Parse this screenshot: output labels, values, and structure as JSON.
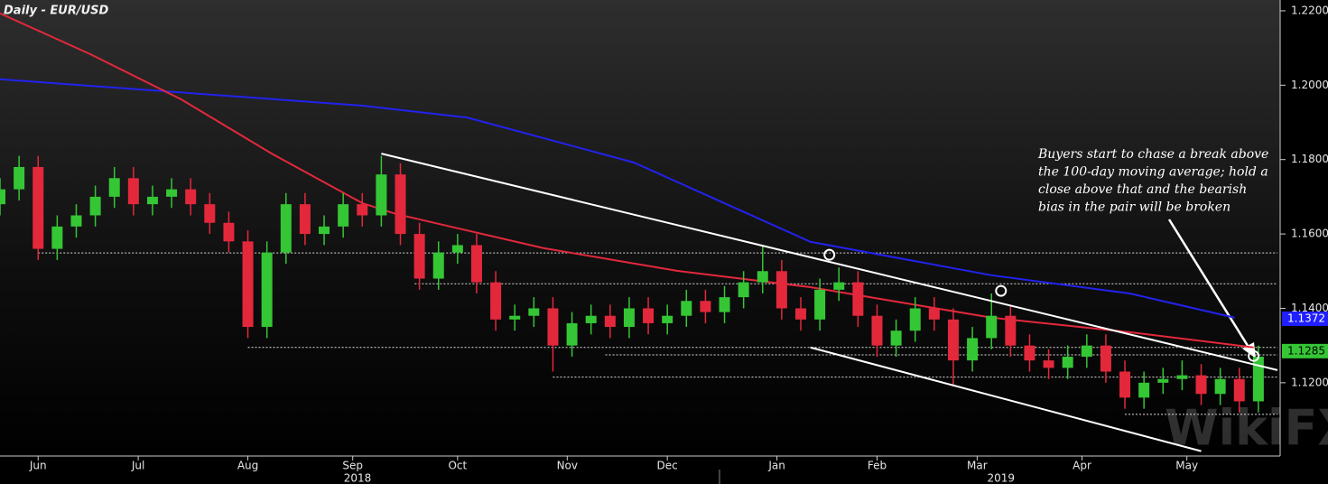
{
  "chart_data": {
    "type": "candlestick",
    "title": "Daily - EUR/USD",
    "watermark": "WikiFX",
    "xlim": [
      0,
      268
    ],
    "ylim": [
      1.1003,
      1.2229
    ],
    "yticks": [
      {
        "value": 1.12,
        "label": "1.1200"
      },
      {
        "value": 1.14,
        "label": "1.1400"
      },
      {
        "value": 1.16,
        "label": "1.1600"
      },
      {
        "value": 1.18,
        "label": "1.1800"
      },
      {
        "value": 1.2,
        "label": "1.2000"
      },
      {
        "value": 1.22,
        "label": "1.2200"
      }
    ],
    "xticks": [
      {
        "value": 8,
        "label": "Jun"
      },
      {
        "value": 29,
        "label": "Jul"
      },
      {
        "value": 52,
        "label": "Aug"
      },
      {
        "value": 74,
        "label": "Sep"
      },
      {
        "value": 96,
        "label": "Oct"
      },
      {
        "value": 119,
        "label": "Nov"
      },
      {
        "value": 140,
        "label": "Dec"
      },
      {
        "value": 163,
        "label": "Jan"
      },
      {
        "value": 184,
        "label": "Feb"
      },
      {
        "value": 205,
        "label": "Mar"
      },
      {
        "value": 227,
        "label": "Apr"
      },
      {
        "value": 249,
        "label": "May"
      }
    ],
    "year_labels": [
      {
        "value": 75,
        "label": "2018"
      },
      {
        "value": 210,
        "label": "2019"
      }
    ],
    "up_color": "#35c635",
    "down_color": "#e3283c",
    "x": [
      0,
      4,
      8,
      12,
      16,
      20,
      24,
      28,
      32,
      36,
      40,
      44,
      48,
      52,
      56,
      60,
      64,
      68,
      72,
      76,
      80,
      84,
      88,
      92,
      96,
      100,
      104,
      108,
      112,
      116,
      120,
      124,
      128,
      132,
      136,
      140,
      144,
      148,
      152,
      156,
      160,
      164,
      168,
      172,
      176,
      180,
      184,
      188,
      192,
      196,
      200,
      204,
      208,
      212,
      216,
      220,
      224,
      228,
      232,
      236,
      240,
      244,
      248,
      252,
      256,
      260,
      264
    ],
    "open": [
      1.168,
      1.172,
      1.178,
      1.156,
      1.162,
      1.165,
      1.17,
      1.175,
      1.168,
      1.17,
      1.172,
      1.168,
      1.163,
      1.158,
      1.135,
      1.155,
      1.168,
      1.16,
      1.162,
      1.168,
      1.165,
      1.176,
      1.16,
      1.148,
      1.155,
      1.157,
      1.147,
      1.137,
      1.138,
      1.14,
      1.13,
      1.136,
      1.138,
      1.135,
      1.14,
      1.136,
      1.138,
      1.142,
      1.139,
      1.143,
      1.147,
      1.15,
      1.14,
      1.137,
      1.145,
      1.147,
      1.138,
      1.13,
      1.134,
      1.14,
      1.137,
      1.126,
      1.132,
      1.138,
      1.13,
      1.126,
      1.124,
      1.127,
      1.13,
      1.123,
      1.116,
      1.12,
      1.121,
      1.122,
      1.117,
      1.121,
      1.115
    ],
    "high": [
      1.175,
      1.181,
      1.181,
      1.165,
      1.168,
      1.173,
      1.178,
      1.178,
      1.173,
      1.175,
      1.175,
      1.171,
      1.166,
      1.161,
      1.158,
      1.171,
      1.171,
      1.165,
      1.171,
      1.171,
      1.181,
      1.179,
      1.163,
      1.158,
      1.16,
      1.16,
      1.15,
      1.141,
      1.143,
      1.143,
      1.139,
      1.141,
      1.141,
      1.143,
      1.143,
      1.141,
      1.145,
      1.145,
      1.146,
      1.15,
      1.157,
      1.153,
      1.143,
      1.148,
      1.151,
      1.15,
      1.141,
      1.137,
      1.143,
      1.143,
      1.14,
      1.135,
      1.144,
      1.141,
      1.133,
      1.129,
      1.13,
      1.133,
      1.133,
      1.126,
      1.123,
      1.124,
      1.126,
      1.125,
      1.124,
      1.124,
      1.13
    ],
    "low": [
      1.165,
      1.169,
      1.153,
      1.153,
      1.159,
      1.162,
      1.167,
      1.165,
      1.165,
      1.167,
      1.165,
      1.16,
      1.155,
      1.132,
      1.132,
      1.152,
      1.157,
      1.157,
      1.159,
      1.162,
      1.162,
      1.157,
      1.145,
      1.145,
      1.152,
      1.144,
      1.134,
      1.134,
      1.135,
      1.123,
      1.127,
      1.133,
      1.132,
      1.132,
      1.133,
      1.133,
      1.135,
      1.136,
      1.136,
      1.14,
      1.144,
      1.137,
      1.134,
      1.134,
      1.142,
      1.135,
      1.127,
      1.127,
      1.131,
      1.134,
      1.119,
      1.123,
      1.129,
      1.127,
      1.123,
      1.121,
      1.121,
      1.124,
      1.12,
      1.113,
      1.113,
      1.117,
      1.118,
      1.114,
      1.114,
      1.112,
      1.112
    ],
    "close": [
      1.172,
      1.178,
      1.156,
      1.162,
      1.165,
      1.17,
      1.175,
      1.168,
      1.17,
      1.172,
      1.168,
      1.163,
      1.158,
      1.135,
      1.155,
      1.168,
      1.16,
      1.162,
      1.168,
      1.165,
      1.176,
      1.16,
      1.148,
      1.155,
      1.157,
      1.147,
      1.137,
      1.138,
      1.14,
      1.13,
      1.136,
      1.138,
      1.135,
      1.14,
      1.136,
      1.138,
      1.142,
      1.139,
      1.143,
      1.147,
      1.15,
      1.14,
      1.137,
      1.145,
      1.147,
      1.138,
      1.13,
      1.134,
      1.14,
      1.137,
      1.126,
      1.132,
      1.138,
      1.13,
      1.126,
      1.124,
      1.127,
      1.13,
      1.123,
      1.116,
      1.12,
      1.121,
      1.122,
      1.117,
      1.121,
      1.115,
      1.127
    ],
    "lines": [
      {
        "color": "#2222ee",
        "x": [
          0,
          76,
          98,
          133,
          170,
          208,
          237,
          259
        ],
        "values": [
          1.2016,
          1.1945,
          1.1913,
          1.1792,
          1.1579,
          1.1489,
          1.144,
          1.1375
        ]
      },
      {
        "color": "#e3283c",
        "x": [
          0,
          19,
          38,
          57,
          76,
          83,
          114,
          142,
          170,
          189,
          208,
          237,
          263
        ],
        "values": [
          1.2193,
          1.2083,
          1.1962,
          1.1816,
          1.1683,
          1.1654,
          1.1562,
          1.1501,
          1.1457,
          1.1416,
          1.1375,
          1.1336,
          1.1295
        ]
      }
    ],
    "trendlines": [
      {
        "x": [
          80,
          268
        ],
        "values": [
          1.1816,
          1.1234
        ]
      },
      {
        "x": [
          170,
          252
        ],
        "values": [
          1.1295,
          1.1016
        ]
      }
    ],
    "levels": [
      {
        "value": 1.1549,
        "x": 8
      },
      {
        "value": 1.1466,
        "x": 87
      },
      {
        "value": 1.1295,
        "x": 52
      },
      {
        "value": 1.1275,
        "x": 127
      },
      {
        "value": 1.1215,
        "x": 116
      },
      {
        "value": 1.1115,
        "x": 236
      }
    ],
    "markers": {
      "x": [
        174,
        210,
        263
      ],
      "values": [
        1.1544,
        1.1447,
        1.1272
      ]
    },
    "price_tags": [
      {
        "value": 1.1372,
        "color": "#1f1fff"
      },
      {
        "value": 1.1285,
        "color": "#35c635"
      }
    ],
    "annotation": [
      "Buyers start to chase a break above",
      "the 100-day moving average; hold a",
      "close above that and the bearish",
      "bias in the pair will be broken"
    ]
  }
}
